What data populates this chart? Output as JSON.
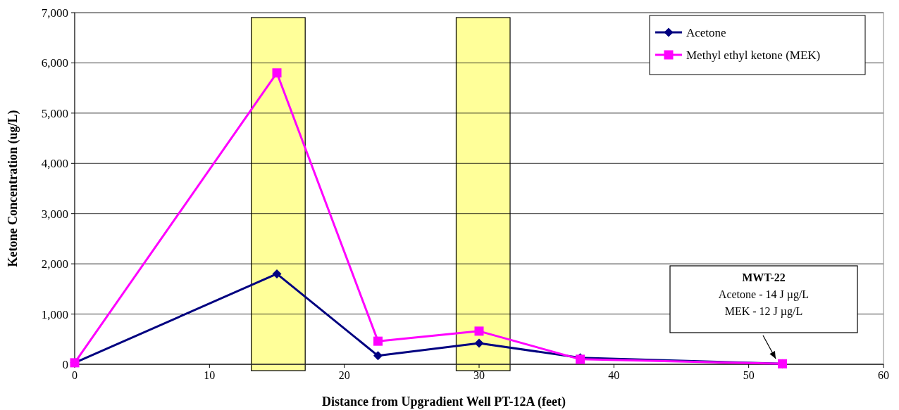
{
  "chart_data": {
    "type": "line",
    "xlabel": "Distance from Upgradient Well PT-12A (feet)",
    "ylabel": "Ketone Concentration (ug/L)",
    "x": [
      0,
      15,
      22.5,
      30,
      37.5,
      52.5
    ],
    "series": [
      {
        "name": "Acetone",
        "color": "#000080",
        "marker": "diamond",
        "values": [
          30,
          1800,
          170,
          420,
          130,
          10
        ]
      },
      {
        "name": "Methyl ethyl ketone (MEK)",
        "color": "#ff00ff",
        "marker": "square",
        "values": [
          30,
          5800,
          460,
          660,
          100,
          10
        ]
      }
    ],
    "xlim": [
      0,
      60
    ],
    "xticks": [
      0,
      10,
      20,
      30,
      40,
      50,
      60
    ],
    "ylim": [
      0,
      7000
    ],
    "yticks": [
      0,
      {
        "value": 1000,
        "label": "1,000"
      },
      {
        "value": 2000,
        "label": "2,000"
      },
      {
        "value": 3000,
        "label": "3,000"
      },
      {
        "value": 4000,
        "label": "4,000"
      },
      {
        "value": 5000,
        "label": "5,000"
      },
      {
        "value": 6000,
        "label": "6,000"
      },
      {
        "value": 7000,
        "label": "7,000"
      }
    ],
    "grid": "y",
    "legend": "top right",
    "bands": [
      {
        "axis": "x",
        "from": 13.1,
        "to": 17.1,
        "color": "#ffff99"
      },
      {
        "axis": "x",
        "from": 28.3,
        "to": 32.3,
        "color": "#ffff99"
      }
    ],
    "annotations": [
      "MWT-22\nAcetone - 14 J µg/L\nMEK - 12 J µg/L"
    ]
  }
}
